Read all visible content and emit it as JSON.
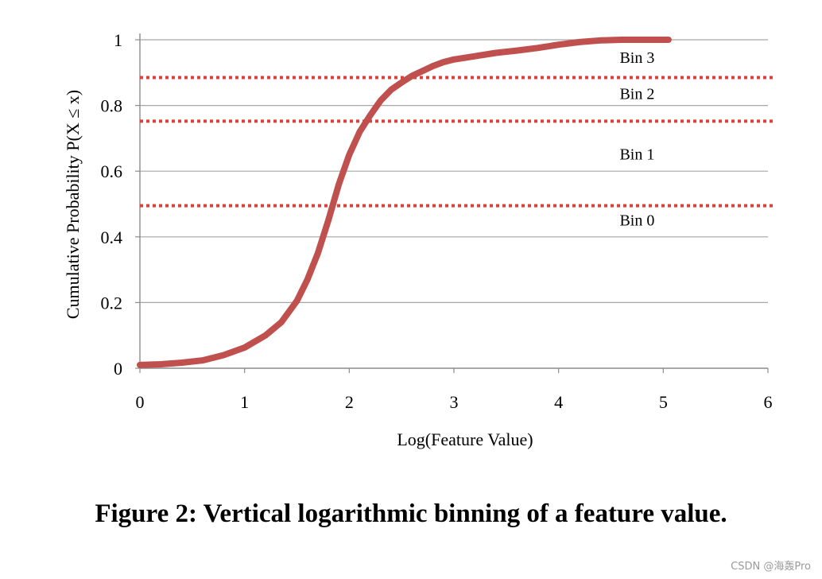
{
  "chart_data": {
    "type": "line",
    "title": "",
    "xlabel": "Log(Feature Value)",
    "ylabel": "Cumulative Probability P(X ≤ x)",
    "xlim": [
      0,
      6
    ],
    "ylim": [
      0,
      1
    ],
    "x_ticks": [
      "0",
      "1",
      "2",
      "3",
      "4",
      "5",
      "6"
    ],
    "y_ticks": [
      "0",
      "0.2",
      "0.4",
      "0.6",
      "0.8",
      "1"
    ],
    "grid": "horizontal",
    "series": [
      {
        "color": "#c0504d",
        "points": [
          [
            0.0,
            0.01
          ],
          [
            0.2,
            0.012
          ],
          [
            0.4,
            0.017
          ],
          [
            0.6,
            0.024
          ],
          [
            0.8,
            0.04
          ],
          [
            1.0,
            0.063
          ],
          [
            1.2,
            0.1
          ],
          [
            1.35,
            0.14
          ],
          [
            1.5,
            0.205
          ],
          [
            1.6,
            0.27
          ],
          [
            1.7,
            0.35
          ],
          [
            1.8,
            0.45
          ],
          [
            1.9,
            0.56
          ],
          [
            2.0,
            0.65
          ],
          [
            2.1,
            0.72
          ],
          [
            2.2,
            0.77
          ],
          [
            2.3,
            0.815
          ],
          [
            2.4,
            0.848
          ],
          [
            2.5,
            0.87
          ],
          [
            2.6,
            0.89
          ],
          [
            2.7,
            0.905
          ],
          [
            2.8,
            0.92
          ],
          [
            2.9,
            0.932
          ],
          [
            3.0,
            0.94
          ],
          [
            3.2,
            0.95
          ],
          [
            3.4,
            0.96
          ],
          [
            3.6,
            0.967
          ],
          [
            3.8,
            0.975
          ],
          [
            4.0,
            0.985
          ],
          [
            4.2,
            0.993
          ],
          [
            4.4,
            0.998
          ],
          [
            4.6,
            1.0
          ],
          [
            5.05,
            1.0
          ]
        ]
      }
    ],
    "thresholds": [
      {
        "y": 0.885,
        "color": "#e0403a"
      },
      {
        "y": 0.752,
        "color": "#e0403a"
      },
      {
        "y": 0.495,
        "color": "#e0403a"
      }
    ],
    "annotations": [
      {
        "text": "Bin 3",
        "x": 4.75,
        "y": 0.93
      },
      {
        "text": "Bin 2",
        "x": 4.75,
        "y": 0.82
      },
      {
        "text": "Bin 1",
        "x": 4.75,
        "y": 0.635
      },
      {
        "text": "Bin 0",
        "x": 4.75,
        "y": 0.435
      }
    ]
  },
  "caption": "Figure 2: Vertical logarithmic binning of a feature value.",
  "watermark": "CSDN @海轰Pro"
}
